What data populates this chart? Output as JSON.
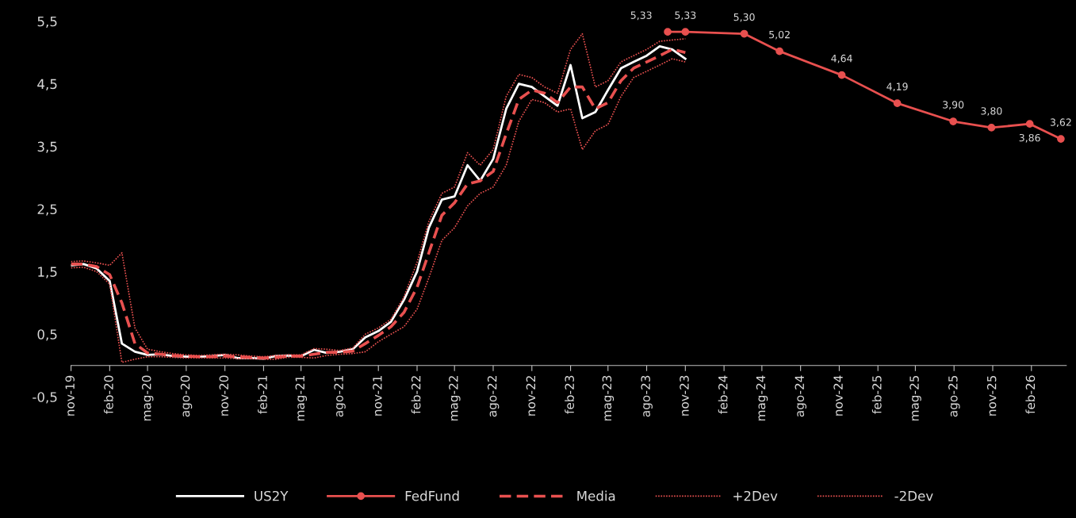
{
  "chart_data": {
    "type": "line",
    "x": [
      "2019-11",
      "2019-12",
      "2020-01",
      "2020-02",
      "2020-03",
      "2020-04",
      "2020-05",
      "2020-06",
      "2020-07",
      "2020-08",
      "2020-09",
      "2020-10",
      "2020-11",
      "2020-12",
      "2021-01",
      "2021-02",
      "2021-03",
      "2021-04",
      "2021-05",
      "2021-06",
      "2021-07",
      "2021-08",
      "2021-09",
      "2021-10",
      "2021-11",
      "2021-12",
      "2022-01",
      "2022-02",
      "2022-03",
      "2022-04",
      "2022-05",
      "2022-06",
      "2022-07",
      "2022-08",
      "2022-09",
      "2022-10",
      "2022-11",
      "2022-12",
      "2023-01",
      "2023-02",
      "2023-03",
      "2023-04",
      "2023-05",
      "2023-06",
      "2023-07",
      "2023-08",
      "2023-09",
      "2023-10",
      "2023-11"
    ],
    "series": [
      {
        "name": "US2Y",
        "color": "#ffffff",
        "line_style": "solid",
        "marker": "none",
        "values": [
          1.6,
          1.62,
          1.55,
          1.35,
          0.35,
          0.22,
          0.17,
          0.18,
          0.15,
          0.14,
          0.14,
          0.15,
          0.17,
          0.12,
          0.12,
          0.11,
          0.15,
          0.16,
          0.15,
          0.25,
          0.2,
          0.22,
          0.26,
          0.45,
          0.55,
          0.7,
          1.05,
          1.5,
          2.2,
          2.65,
          2.7,
          3.2,
          2.95,
          3.3,
          4.1,
          4.5,
          4.45,
          4.3,
          4.15,
          4.8,
          3.95,
          4.05,
          4.4,
          4.75,
          4.85,
          4.95,
          5.1,
          5.05,
          4.9
        ]
      },
      {
        "name": "FedFund",
        "color": "#e8504f",
        "line_style": "solid",
        "marker": "circle",
        "value_labels": [
          "5,33",
          "5,33",
          "5,30",
          "5,02",
          "4,64",
          "4,19",
          "3,90",
          "3,80",
          "3,86",
          "3,62"
        ],
        "x": [
          "2023-09-20",
          "2023-11-01",
          "2024-03-20",
          "2024-06-12",
          "2024-11-07",
          "2025-03-19",
          "2025-07-30",
          "2025-10-29",
          "2026-01-28",
          "2026-04-12"
        ],
        "values": [
          5.33,
          5.33,
          5.3,
          5.02,
          4.64,
          4.19,
          3.9,
          3.8,
          3.86,
          3.62
        ]
      },
      {
        "name": "Media",
        "color": "#e8504f",
        "line_style": "dashed",
        "marker": "none",
        "values": [
          1.62,
          1.62,
          1.58,
          1.45,
          1.0,
          0.35,
          0.2,
          0.18,
          0.16,
          0.15,
          0.14,
          0.14,
          0.15,
          0.14,
          0.13,
          0.12,
          0.13,
          0.15,
          0.15,
          0.18,
          0.21,
          0.21,
          0.23,
          0.35,
          0.48,
          0.62,
          0.85,
          1.25,
          1.8,
          2.4,
          2.6,
          2.9,
          2.95,
          3.1,
          3.7,
          4.25,
          4.4,
          4.35,
          4.2,
          4.45,
          4.45,
          4.1,
          4.2,
          4.55,
          4.75,
          4.85,
          4.95,
          5.05,
          5.0
        ]
      },
      {
        "name": "+2Dev",
        "color": "#e8504f",
        "line_style": "dotted",
        "marker": "none",
        "values": [
          1.66,
          1.67,
          1.64,
          1.6,
          1.8,
          0.6,
          0.26,
          0.22,
          0.19,
          0.17,
          0.16,
          0.17,
          0.18,
          0.17,
          0.15,
          0.14,
          0.16,
          0.17,
          0.17,
          0.27,
          0.26,
          0.24,
          0.28,
          0.5,
          0.6,
          0.74,
          1.1,
          1.65,
          2.3,
          2.75,
          2.85,
          3.4,
          3.2,
          3.45,
          4.3,
          4.65,
          4.6,
          4.45,
          4.35,
          5.05,
          5.3,
          4.45,
          4.55,
          4.85,
          4.95,
          5.05,
          5.18,
          5.2,
          5.22
        ]
      },
      {
        "name": "-2Dev",
        "color": "#e8504f",
        "line_style": "dotted",
        "marker": "none",
        "values": [
          1.56,
          1.57,
          1.5,
          1.3,
          0.05,
          0.1,
          0.14,
          0.14,
          0.13,
          0.12,
          0.12,
          0.12,
          0.12,
          0.11,
          0.11,
          0.1,
          0.1,
          0.13,
          0.13,
          0.12,
          0.16,
          0.18,
          0.19,
          0.22,
          0.38,
          0.5,
          0.62,
          0.9,
          1.4,
          2.0,
          2.2,
          2.55,
          2.75,
          2.85,
          3.2,
          3.9,
          4.25,
          4.2,
          4.05,
          4.1,
          3.45,
          3.75,
          3.85,
          4.3,
          4.6,
          4.7,
          4.8,
          4.9,
          4.85
        ]
      }
    ],
    "ylim": [
      -0.5,
      5.5
    ],
    "yticks": [
      {
        "value": -0.5,
        "label": "-0,5"
      },
      {
        "value": 0.5,
        "label": "0,5"
      },
      {
        "value": 1.5,
        "label": "1,5"
      },
      {
        "value": 2.5,
        "label": "2,5"
      },
      {
        "value": 3.5,
        "label": "3,5"
      },
      {
        "value": 4.5,
        "label": "4,5"
      },
      {
        "value": 5.5,
        "label": "5,5"
      }
    ],
    "xlim": [
      "2019-11-01",
      "2026-04-25"
    ],
    "xticks": [
      {
        "value": "2019-11-01",
        "label": "nov-19"
      },
      {
        "value": "2020-02-01",
        "label": "feb-20"
      },
      {
        "value": "2020-05-01",
        "label": "mag-20"
      },
      {
        "value": "2020-08-01",
        "label": "ago-20"
      },
      {
        "value": "2020-11-01",
        "label": "nov-20"
      },
      {
        "value": "2021-02-01",
        "label": "feb-21"
      },
      {
        "value": "2021-05-01",
        "label": "mag-21"
      },
      {
        "value": "2021-08-01",
        "label": "ago-21"
      },
      {
        "value": "2021-11-01",
        "label": "nov-21"
      },
      {
        "value": "2022-02-01",
        "label": "feb-22"
      },
      {
        "value": "2022-05-01",
        "label": "mag-22"
      },
      {
        "value": "2022-08-01",
        "label": "ago-22"
      },
      {
        "value": "2022-11-01",
        "label": "nov-22"
      },
      {
        "value": "2023-02-01",
        "label": "feb-23"
      },
      {
        "value": "2023-05-01",
        "label": "mag-23"
      },
      {
        "value": "2023-08-01",
        "label": "ago-23"
      },
      {
        "value": "2023-11-01",
        "label": "nov-23"
      },
      {
        "value": "2024-02-01",
        "label": "feb-24"
      },
      {
        "value": "2024-05-01",
        "label": "mag-24"
      },
      {
        "value": "2024-08-01",
        "label": "ago-24"
      },
      {
        "value": "2024-11-01",
        "label": "nov-24"
      },
      {
        "value": "2025-02-01",
        "label": "feb-25"
      },
      {
        "value": "2025-05-01",
        "label": "mag-25"
      },
      {
        "value": "2025-08-01",
        "label": "ago-25"
      },
      {
        "value": "2025-11-01",
        "label": "nov-25"
      },
      {
        "value": "2026-02-01",
        "label": "feb-26"
      }
    ],
    "grid": false,
    "legend": "bottom"
  }
}
